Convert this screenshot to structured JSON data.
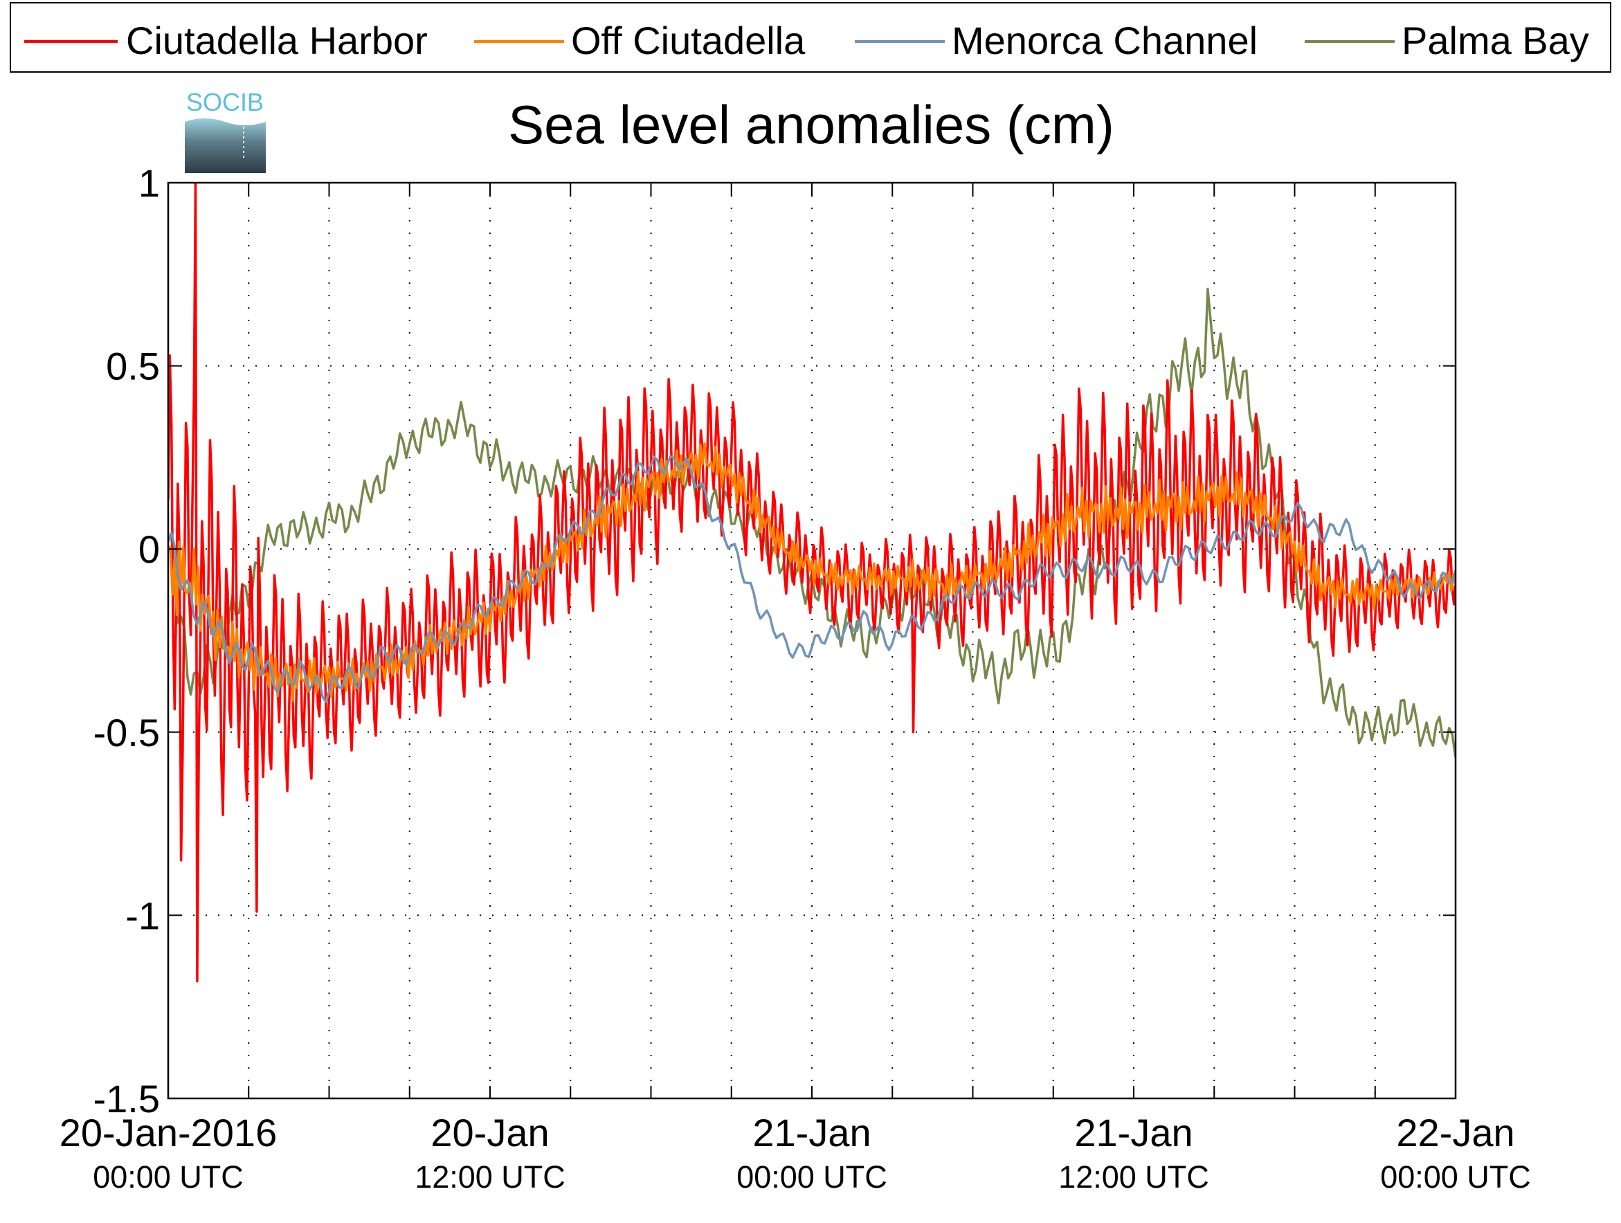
{
  "logo": {
    "text": "SOCIB"
  },
  "colors": {
    "ciutadella_harbor": "#ff0000",
    "off_ciutadella": "#ff8000",
    "menorca_channel": "#6f94b8",
    "palma_bay": "#77894a",
    "axes": "#000000",
    "grid": "#000000"
  },
  "chart_data": {
    "type": "line",
    "title": "Sea level anomalies (cm)",
    "xlabel": "",
    "ylabel": "",
    "x_unit": "hours",
    "xlim": [
      0,
      48
    ],
    "ylim": [
      -1.5,
      1
    ],
    "y_ticks": [
      -1.5,
      -1,
      -0.5,
      0,
      0.5,
      1
    ],
    "y_tick_labels": [
      "-1.5",
      "-1",
      "-0.5",
      "0",
      "0.5",
      "1"
    ],
    "x_major_ticks": [
      {
        "x": 0,
        "line1": "20-Jan-2016",
        "line2": "00:00 UTC"
      },
      {
        "x": 12,
        "line1": "20-Jan",
        "line2": "12:00 UTC"
      },
      {
        "x": 24,
        "line1": "21-Jan",
        "line2": "00:00 UTC"
      },
      {
        "x": 36,
        "line1": "21-Jan",
        "line2": "12:00 UTC"
      },
      {
        "x": 48,
        "line1": "22-Jan",
        "line2": "00:00 UTC"
      }
    ],
    "x_minor_ticks": [
      3,
      6,
      9,
      15,
      18,
      21,
      27,
      30,
      33,
      39,
      42,
      45
    ],
    "grid": true,
    "legend_position": "top",
    "series": [
      {
        "name": "Ciutadella Harbor",
        "color": "#ff0000",
        "hours": [
          0,
          1,
          2,
          3,
          4,
          5,
          6,
          7,
          8,
          9,
          10,
          11,
          12,
          13,
          14,
          15,
          16,
          17,
          18,
          19,
          20,
          21,
          22,
          23,
          24,
          25,
          26,
          27,
          28,
          29,
          30,
          31,
          32,
          33,
          34,
          35,
          36,
          37,
          38,
          39,
          40,
          41,
          42,
          43,
          44,
          45,
          46,
          47,
          48
        ],
        "values": [
          -0.05,
          -0.05,
          -0.25,
          -0.3,
          -0.35,
          -0.4,
          -0.35,
          -0.35,
          -0.3,
          -0.28,
          -0.25,
          -0.2,
          -0.2,
          -0.12,
          -0.05,
          0.05,
          0.1,
          0.15,
          0.2,
          0.25,
          0.25,
          0.22,
          0.1,
          0.0,
          -0.05,
          -0.1,
          -0.1,
          -0.1,
          -0.1,
          -0.12,
          -0.1,
          -0.05,
          -0.05,
          0.05,
          0.15,
          0.1,
          0.1,
          0.15,
          0.15,
          0.15,
          0.15,
          0.1,
          0.0,
          -0.1,
          -0.15,
          -0.15,
          -0.1,
          -0.12,
          -0.1
        ],
        "amplitude": [
          0.55,
          0.5,
          0.45,
          0.38,
          0.3,
          0.25,
          0.2,
          0.2,
          0.18,
          0.18,
          0.2,
          0.2,
          0.2,
          0.2,
          0.2,
          0.22,
          0.25,
          0.28,
          0.25,
          0.2,
          0.2,
          0.18,
          0.15,
          0.12,
          0.12,
          0.12,
          0.12,
          0.12,
          0.15,
          0.15,
          0.15,
          0.18,
          0.2,
          0.3,
          0.3,
          0.3,
          0.3,
          0.3,
          0.28,
          0.25,
          0.25,
          0.22,
          0.2,
          0.18,
          0.15,
          0.12,
          0.1,
          0.1,
          0.1
        ],
        "extremes": [
          {
            "hour": 0.5,
            "value": -0.85
          },
          {
            "hour": 1.0,
            "value": 1.0
          },
          {
            "hour": 1.1,
            "value": -1.18
          },
          {
            "hour": 3.3,
            "value": -0.99
          },
          {
            "hour": 27.8,
            "value": -0.5
          }
        ]
      },
      {
        "name": "Off Ciutadella",
        "color": "#ff8000",
        "hours": [
          0,
          1,
          2,
          3,
          4,
          5,
          6,
          7,
          8,
          9,
          10,
          11,
          12,
          13,
          14,
          15,
          16,
          17,
          18,
          19,
          20,
          21,
          22,
          23,
          24,
          25,
          26,
          27,
          28,
          29,
          30,
          31,
          32,
          33,
          34,
          35,
          36,
          37,
          38,
          39,
          40,
          41,
          42,
          43,
          44,
          45,
          46,
          47,
          48
        ],
        "values": [
          -0.05,
          -0.1,
          -0.25,
          -0.3,
          -0.35,
          -0.35,
          -0.35,
          -0.35,
          -0.32,
          -0.3,
          -0.25,
          -0.22,
          -0.18,
          -0.12,
          -0.05,
          0.02,
          0.08,
          0.12,
          0.18,
          0.22,
          0.25,
          0.2,
          0.1,
          0.0,
          -0.05,
          -0.08,
          -0.08,
          -0.08,
          -0.08,
          -0.1,
          -0.08,
          -0.05,
          0.0,
          0.05,
          0.1,
          0.1,
          0.1,
          0.12,
          0.12,
          0.15,
          0.15,
          0.1,
          0.0,
          -0.1,
          -0.12,
          -0.12,
          -0.1,
          -0.1,
          -0.08
        ],
        "amplitude": [
          0.12,
          0.1,
          0.08,
          0.07,
          0.06,
          0.06,
          0.05,
          0.05,
          0.05,
          0.05,
          0.05,
          0.05,
          0.05,
          0.05,
          0.05,
          0.05,
          0.06,
          0.06,
          0.06,
          0.05,
          0.05,
          0.05,
          0.05,
          0.04,
          0.04,
          0.04,
          0.04,
          0.04,
          0.05,
          0.05,
          0.05,
          0.05,
          0.06,
          0.07,
          0.07,
          0.07,
          0.07,
          0.07,
          0.07,
          0.06,
          0.06,
          0.05,
          0.05,
          0.05,
          0.04,
          0.04,
          0.03,
          0.03,
          0.03
        ]
      },
      {
        "name": "Menorca Channel",
        "color": "#6f94b8",
        "hours": [
          0,
          1,
          2,
          3,
          4,
          5,
          6,
          7,
          8,
          9,
          10,
          11,
          12,
          13,
          14,
          15,
          16,
          17,
          18,
          19,
          20,
          21,
          22,
          23,
          24,
          25,
          26,
          27,
          28,
          29,
          30,
          31,
          32,
          33,
          34,
          35,
          36,
          37,
          38,
          39,
          40,
          41,
          42,
          43,
          44,
          45,
          46,
          47,
          48
        ],
        "values": [
          0.0,
          -0.15,
          -0.25,
          -0.3,
          -0.35,
          -0.35,
          -0.38,
          -0.35,
          -0.3,
          -0.28,
          -0.25,
          -0.22,
          -0.15,
          -0.1,
          -0.05,
          0.05,
          0.1,
          0.2,
          0.22,
          0.25,
          0.15,
          0.0,
          -0.15,
          -0.27,
          -0.27,
          -0.22,
          -0.2,
          -0.25,
          -0.2,
          -0.15,
          -0.1,
          -0.12,
          -0.1,
          -0.05,
          -0.05,
          -0.05,
          -0.05,
          -0.08,
          0.0,
          0.0,
          0.05,
          0.05,
          0.1,
          0.05,
          0.05,
          -0.05,
          -0.1,
          -0.12,
          -0.05
        ],
        "amplitude": [
          0.06,
          0.05,
          0.05,
          0.05,
          0.04,
          0.04,
          0.04,
          0.04,
          0.04,
          0.03,
          0.03,
          0.03,
          0.03,
          0.03,
          0.03,
          0.03,
          0.03,
          0.03,
          0.03,
          0.03,
          0.03,
          0.03,
          0.03,
          0.03,
          0.03,
          0.03,
          0.03,
          0.03,
          0.03,
          0.03,
          0.03,
          0.03,
          0.03,
          0.03,
          0.03,
          0.03,
          0.03,
          0.03,
          0.03,
          0.03,
          0.03,
          0.03,
          0.03,
          0.03,
          0.03,
          0.03,
          0.03,
          0.03,
          0.03
        ]
      },
      {
        "name": "Palma Bay",
        "color": "#77894a",
        "hours": [
          0,
          1,
          2,
          3,
          4,
          5,
          6,
          7,
          8,
          9,
          10,
          11,
          12,
          13,
          14,
          15,
          16,
          17,
          18,
          19,
          20,
          21,
          22,
          23,
          24,
          25,
          26,
          27,
          28,
          29,
          30,
          31,
          32,
          33,
          34,
          35,
          36,
          37,
          38,
          39,
          40,
          41,
          42,
          43,
          44,
          45,
          46,
          47,
          48
        ],
        "values": [
          0.0,
          -0.4,
          -0.25,
          -0.1,
          0.05,
          0.05,
          0.08,
          0.1,
          0.2,
          0.3,
          0.32,
          0.35,
          0.25,
          0.2,
          0.18,
          0.2,
          0.2,
          0.18,
          0.15,
          0.2,
          0.15,
          0.1,
          0.05,
          -0.05,
          -0.1,
          -0.2,
          -0.25,
          -0.15,
          -0.1,
          -0.2,
          -0.3,
          -0.35,
          -0.25,
          -0.3,
          -0.1,
          0.0,
          0.25,
          0.4,
          0.5,
          0.55,
          0.45,
          0.25,
          -0.05,
          -0.35,
          -0.45,
          -0.5,
          -0.45,
          -0.5,
          -0.52
        ],
        "amplitude": [
          0.08,
          0.08,
          0.07,
          0.06,
          0.05,
          0.05,
          0.05,
          0.05,
          0.05,
          0.05,
          0.05,
          0.05,
          0.06,
          0.05,
          0.05,
          0.05,
          0.05,
          0.05,
          0.05,
          0.05,
          0.05,
          0.05,
          0.05,
          0.05,
          0.06,
          0.06,
          0.06,
          0.06,
          0.06,
          0.07,
          0.07,
          0.07,
          0.08,
          0.08,
          0.08,
          0.08,
          0.08,
          0.09,
          0.09,
          0.09,
          0.08,
          0.07,
          0.07,
          0.06,
          0.06,
          0.06,
          0.06,
          0.05,
          0.05
        ],
        "extremes": [
          {
            "hour": 38.7,
            "value": 0.71
          }
        ]
      }
    ]
  }
}
